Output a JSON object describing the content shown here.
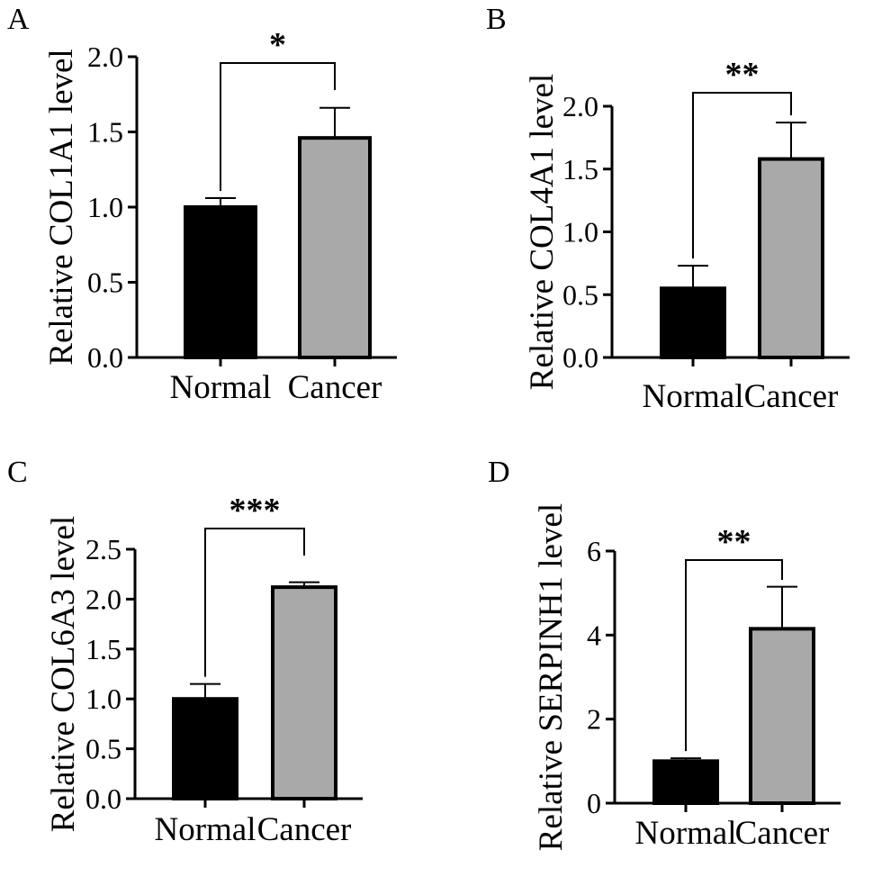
{
  "chart_data": [
    {
      "type": "bar",
      "panel": "A",
      "ylabel": "Relative COL1A1 level",
      "categories": [
        "Normal",
        "Cancer"
      ],
      "values": [
        1.0,
        1.46
      ],
      "errors": [
        0.06,
        0.2
      ],
      "colors": [
        "#000000",
        "#a9a9a9"
      ],
      "ylim": [
        0,
        2.0
      ],
      "yticks": [
        "0.0",
        "0.5",
        "1.0",
        "1.5",
        "2.0"
      ],
      "significance": "*"
    },
    {
      "type": "bar",
      "panel": "B",
      "ylabel": "Relative COL4A1 level",
      "categories": [
        "Normal",
        "Cancer"
      ],
      "values": [
        0.55,
        1.58
      ],
      "errors": [
        0.18,
        0.29
      ],
      "colors": [
        "#000000",
        "#a9a9a9"
      ],
      "ylim": [
        0,
        2.0
      ],
      "yticks": [
        "0.0",
        "0.5",
        "1.0",
        "1.5",
        "2.0"
      ],
      "significance": "**"
    },
    {
      "type": "bar",
      "panel": "C",
      "ylabel": "Relative COL6A3 level",
      "categories": [
        "Normal",
        "Cancer"
      ],
      "values": [
        1.0,
        2.12
      ],
      "errors": [
        0.15,
        0.05
      ],
      "colors": [
        "#000000",
        "#a9a9a9"
      ],
      "ylim": [
        0,
        2.5
      ],
      "yticks": [
        "0.0",
        "0.5",
        "1.0",
        "1.5",
        "2.0",
        "2.5"
      ],
      "significance": "***"
    },
    {
      "type": "bar",
      "panel": "D",
      "ylabel": "Relative SERPINH1 level",
      "categories": [
        "Normal",
        "Cancer"
      ],
      "values": [
        1.0,
        4.15
      ],
      "errors": [
        0.07,
        1.0
      ],
      "colors": [
        "#000000",
        "#a9a9a9"
      ],
      "ylim": [
        0,
        6
      ],
      "yticks": [
        "0",
        "2",
        "4",
        "6"
      ],
      "significance": "**"
    }
  ]
}
